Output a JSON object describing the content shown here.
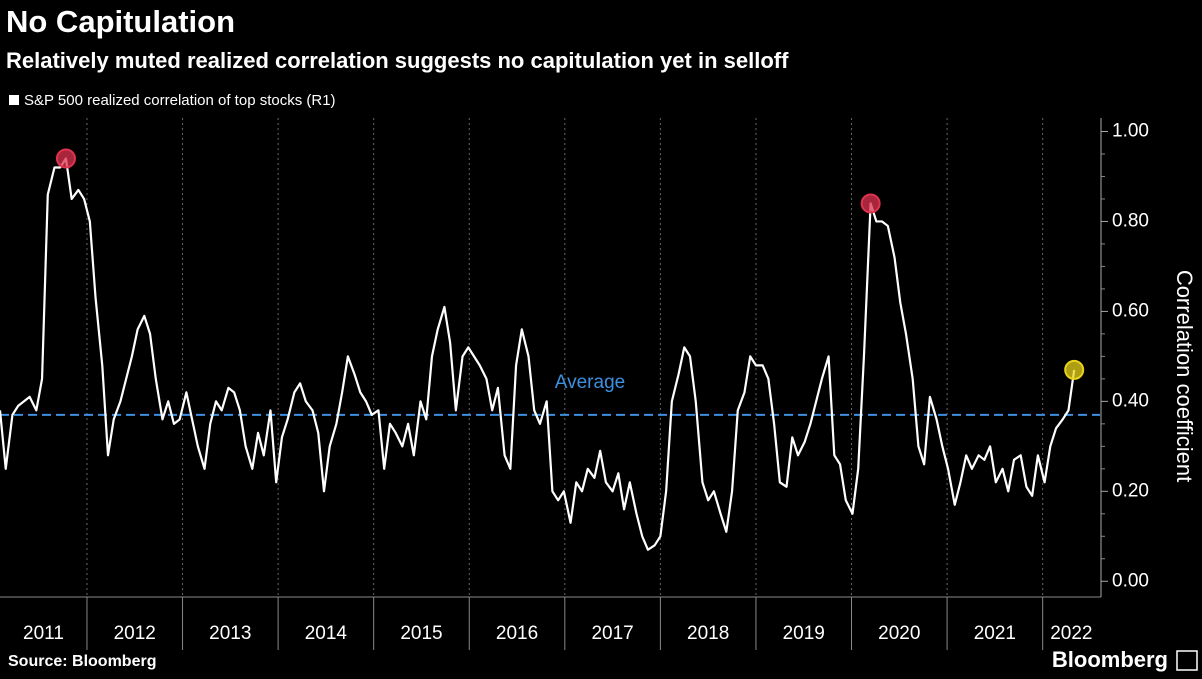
{
  "chart_data": {
    "type": "line",
    "title": "No Capitulation",
    "subtitle": "Relatively muted realized correlation suggests no capitulation yet in selloff",
    "y_axis_label": "Correlation coefficient",
    "source": "Source: Bloomberg",
    "brand": "Bloomberg",
    "xlim": [
      2011.09,
      2022.6
    ],
    "xticks": [
      2011,
      2012,
      2013,
      2014,
      2015,
      2016,
      2017,
      2018,
      2019,
      2020,
      2021,
      2022
    ],
    "ylim": [
      -0.035,
      1.03
    ],
    "yticks": [
      {
        "value": 0,
        "label": "0.00"
      },
      {
        "value": 0.2,
        "label": "0.20"
      },
      {
        "value": 0.4,
        "label": "0.40"
      },
      {
        "value": 0.6,
        "label": "0.60"
      },
      {
        "value": 0.8,
        "label": "0.80"
      },
      {
        "value": 1,
        "label": "1.00"
      }
    ],
    "grid": true,
    "average": {
      "label": "Average",
      "value": 0.37,
      "color": "#3f8fe0"
    },
    "markers": [
      {
        "x": 2011.78,
        "y": 0.94,
        "color": "#e0334f"
      },
      {
        "x": 2020.2,
        "y": 0.84,
        "color": "#e0334f"
      },
      {
        "x": 2022.33,
        "y": 0.47,
        "color": "#e8d31a"
      }
    ],
    "x": [
      2011.09,
      2011.15,
      2011.22,
      2011.28,
      2011.34,
      2011.4,
      2011.47,
      2011.53,
      2011.59,
      2011.66,
      2011.72,
      2011.78,
      2011.84,
      2011.91,
      2011.97,
      2012.03,
      2012.09,
      2012.16,
      2012.22,
      2012.28,
      2012.35,
      2012.41,
      2012.47,
      2012.53,
      2012.6,
      2012.66,
      2012.72,
      2012.79,
      2012.85,
      2012.91,
      2012.97,
      2013.04,
      2013.1,
      2013.16,
      2013.23,
      2013.29,
      2013.35,
      2013.41,
      2013.48,
      2013.54,
      2013.6,
      2013.66,
      2013.73,
      2013.79,
      2013.85,
      2013.92,
      2013.98,
      2014.04,
      2014.1,
      2014.17,
      2014.23,
      2014.29,
      2014.36,
      2014.42,
      2014.48,
      2014.54,
      2014.61,
      2014.67,
      2014.73,
      2014.8,
      2014.86,
      2014.92,
      2014.98,
      2015.05,
      2015.11,
      2015.17,
      2015.23,
      2015.3,
      2015.36,
      2015.42,
      2015.49,
      2015.55,
      2015.61,
      2015.67,
      2015.74,
      2015.8,
      2015.86,
      2015.93,
      2015.99,
      2016.05,
      2016.11,
      2016.18,
      2016.24,
      2016.3,
      2016.37,
      2016.43,
      2016.49,
      2016.55,
      2016.62,
      2016.68,
      2016.74,
      2016.81,
      2016.87,
      2016.93,
      2016.99,
      2017.06,
      2017.12,
      2017.18,
      2017.24,
      2017.31,
      2017.37,
      2017.43,
      2017.5,
      2017.56,
      2017.62,
      2017.68,
      2017.75,
      2017.81,
      2017.87,
      2017.94,
      2018.0,
      2018.06,
      2018.12,
      2018.19,
      2018.25,
      2018.31,
      2018.37,
      2018.44,
      2018.5,
      2018.56,
      2018.63,
      2018.69,
      2018.75,
      2018.81,
      2018.88,
      2018.94,
      2019.0,
      2019.07,
      2019.13,
      2019.19,
      2019.25,
      2019.32,
      2019.38,
      2019.44,
      2019.51,
      2019.57,
      2019.63,
      2019.69,
      2019.76,
      2019.82,
      2019.88,
      2019.94,
      2020.01,
      2020.07,
      2020.13,
      2020.2,
      2020.26,
      2020.32,
      2020.38,
      2020.45,
      2020.51,
      2020.57,
      2020.64,
      2020.7,
      2020.76,
      2020.82,
      2020.89,
      2020.95,
      2021.01,
      2021.08,
      2021.14,
      2021.2,
      2021.26,
      2021.33,
      2021.39,
      2021.45,
      2021.51,
      2021.58,
      2021.64,
      2021.7,
      2021.77,
      2021.83,
      2021.89,
      2021.95,
      2022.02,
      2022.08,
      2022.14,
      2022.21,
      2022.27,
      2022.33
    ],
    "series": [
      {
        "name": "S&P 500 realized correlation of top stocks (R1)",
        "color": "#ffffff",
        "values": [
          0.38,
          0.25,
          0.37,
          0.39,
          0.4,
          0.41,
          0.38,
          0.45,
          0.86,
          0.92,
          0.92,
          0.94,
          0.85,
          0.87,
          0.85,
          0.8,
          0.63,
          0.48,
          0.28,
          0.36,
          0.4,
          0.45,
          0.5,
          0.56,
          0.59,
          0.55,
          0.45,
          0.36,
          0.4,
          0.35,
          0.36,
          0.42,
          0.36,
          0.3,
          0.25,
          0.35,
          0.4,
          0.38,
          0.43,
          0.42,
          0.38,
          0.3,
          0.25,
          0.33,
          0.28,
          0.38,
          0.22,
          0.32,
          0.36,
          0.42,
          0.44,
          0.4,
          0.38,
          0.33,
          0.2,
          0.3,
          0.35,
          0.42,
          0.5,
          0.46,
          0.42,
          0.4,
          0.37,
          0.38,
          0.25,
          0.35,
          0.33,
          0.3,
          0.35,
          0.28,
          0.4,
          0.36,
          0.5,
          0.56,
          0.61,
          0.53,
          0.38,
          0.5,
          0.52,
          0.5,
          0.48,
          0.45,
          0.38,
          0.43,
          0.28,
          0.25,
          0.48,
          0.56,
          0.5,
          0.38,
          0.35,
          0.4,
          0.2,
          0.18,
          0.2,
          0.13,
          0.22,
          0.2,
          0.25,
          0.23,
          0.29,
          0.22,
          0.2,
          0.24,
          0.16,
          0.22,
          0.15,
          0.1,
          0.07,
          0.08,
          0.1,
          0.2,
          0.4,
          0.46,
          0.52,
          0.5,
          0.4,
          0.22,
          0.18,
          0.2,
          0.15,
          0.11,
          0.2,
          0.38,
          0.42,
          0.5,
          0.48,
          0.48,
          0.45,
          0.35,
          0.22,
          0.21,
          0.32,
          0.28,
          0.31,
          0.35,
          0.4,
          0.45,
          0.5,
          0.28,
          0.26,
          0.18,
          0.15,
          0.25,
          0.5,
          0.84,
          0.8,
          0.8,
          0.79,
          0.72,
          0.62,
          0.55,
          0.45,
          0.3,
          0.26,
          0.41,
          0.36,
          0.3,
          0.25,
          0.17,
          0.22,
          0.28,
          0.25,
          0.28,
          0.27,
          0.3,
          0.22,
          0.25,
          0.2,
          0.27,
          0.28,
          0.21,
          0.19,
          0.28,
          0.22,
          0.3,
          0.34,
          0.36,
          0.38,
          0.47
        ]
      }
    ]
  }
}
